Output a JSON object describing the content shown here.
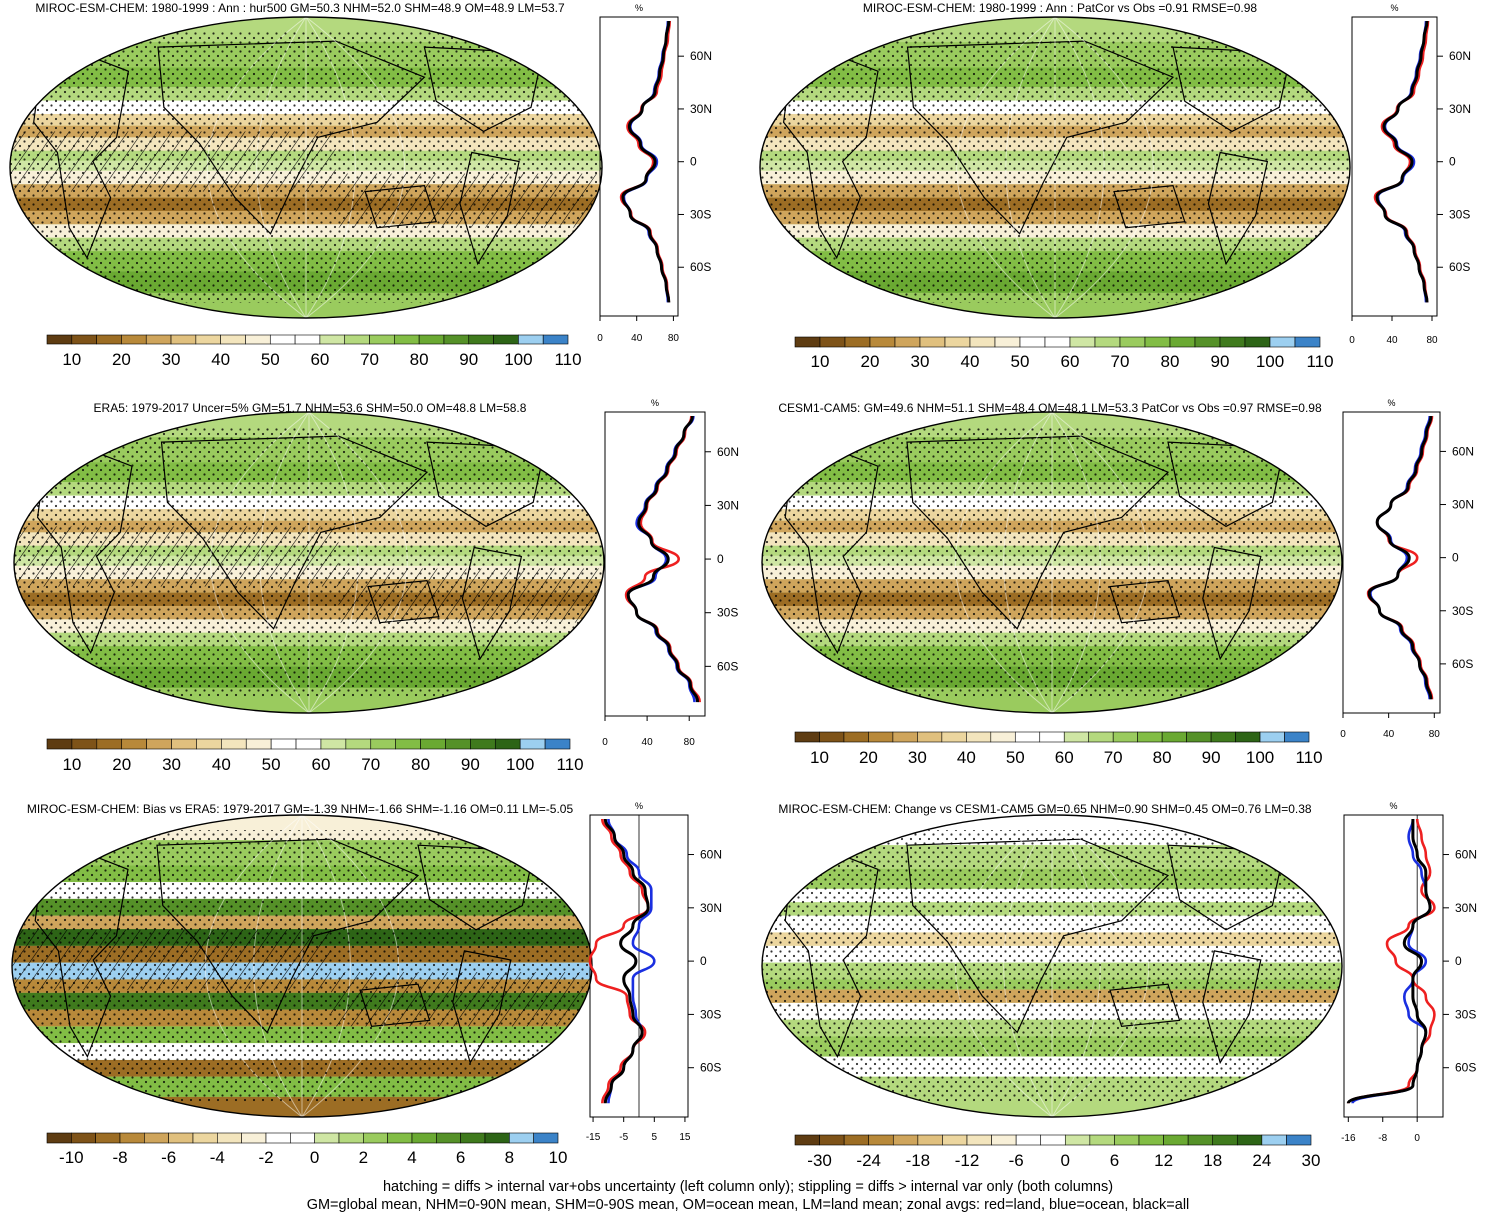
{
  "figure": {
    "footer_lines": [
      "hatching = diffs > internal var+obs uncertainty (left column only); stippling = diffs > internal var only (both columns)",
      "GM=global mean, NHM=0-90N mean, SHM=0-90S mean, OM=ocean mean, LM=land mean; zonal avgs: red=land, blue=ocean, black=all"
    ]
  },
  "colors": {
    "land_line": "#ee2020",
    "ocean_line": "#1a2fe0",
    "all_line": "#000000",
    "abs_palette": [
      "#5e3c12",
      "#7e5318",
      "#9c6d24",
      "#b8893a",
      "#cfa55c",
      "#e0c07e",
      "#ecd69f",
      "#f3e5bd",
      "#f8f0d8",
      "#ffffff",
      "#ffffff",
      "#cfe6a4",
      "#b4d97e",
      "#9acb5e",
      "#82bd45",
      "#6aa932",
      "#559128",
      "#3f7a1d",
      "#2d6416",
      "#9ccff0",
      "#3b83c8"
    ],
    "diff_palette": [
      "#5e3c12",
      "#7e5318",
      "#9c6d24",
      "#b8893a",
      "#cfa55c",
      "#e0c07e",
      "#ecd69f",
      "#f3e5bd",
      "#f8f0d8",
      "#ffffff",
      "#ffffff",
      "#cfe6a4",
      "#b4d97e",
      "#9acb5e",
      "#82bd45",
      "#6aa932",
      "#559128",
      "#3f7a1d",
      "#2d6416",
      "#9ccff0",
      "#3b83c8"
    ]
  },
  "chart_data": [
    {
      "type": "heatmap",
      "title": "MIROC-ESM-CHEM: 1980-1999 : Ann : hur500 GM=50.3 NHM=52.0 SHM=48.9 OM=48.9 LM=53.7",
      "colorbar_ticks": [
        "10",
        "20",
        "30",
        "40",
        "50",
        "60",
        "70",
        "80",
        "90",
        "100",
        "110"
      ],
      "zonal_plot": {
        "unit_label": "%",
        "x_ticks": [
          "0",
          "40",
          "80"
        ],
        "x_range": [
          0,
          85
        ],
        "y_ticks": [
          "60N",
          "30N",
          "0",
          "30S",
          "60S"
        ],
        "lat": [
          80,
          70,
          60,
          50,
          40,
          30,
          20,
          10,
          0,
          -10,
          -20,
          -30,
          -40,
          -50,
          -60,
          -70,
          -80
        ],
        "series": [
          {
            "name": "land",
            "values": [
              76,
              74,
              70,
              67,
              62,
              45,
              30,
              42,
              58,
              50,
              23,
              34,
              55,
              63,
              68,
              73,
              75
            ]
          },
          {
            "name": "ocean",
            "values": [
              74,
              72,
              68,
              64,
              59,
              46,
              33,
              45,
              62,
              51,
              26,
              33,
              53,
              62,
              67,
              72,
              74
            ]
          },
          {
            "name": "all",
            "values": [
              75,
              72,
              69,
              65,
              60,
              46,
              32,
              44,
              60,
              50,
              25,
              33,
              54,
              62,
              67,
              72,
              75
            ]
          }
        ]
      }
    },
    {
      "type": "heatmap",
      "title": "MIROC-ESM-CHEM: 1980-1999 : Ann : PatCor vs Obs =0.91 RMSE=0.98",
      "colorbar_ticks": [
        "10",
        "20",
        "30",
        "40",
        "50",
        "60",
        "70",
        "80",
        "90",
        "100",
        "110"
      ],
      "zonal_plot": {
        "unit_label": "%",
        "x_ticks": [
          "0",
          "40",
          "80"
        ],
        "x_range": [
          0,
          85
        ],
        "y_ticks": [
          "60N",
          "30N",
          "0",
          "30S",
          "60S"
        ],
        "lat": [
          80,
          70,
          60,
          50,
          40,
          30,
          20,
          10,
          0,
          -10,
          -20,
          -30,
          -40,
          -50,
          -60,
          -70,
          -80
        ],
        "series": [
          {
            "name": "land",
            "values": [
              76,
              74,
              71,
              67,
              62,
              45,
              30,
              42,
              58,
              50,
              23,
              34,
              55,
              63,
              68,
              73,
              75
            ]
          },
          {
            "name": "ocean",
            "values": [
              74,
              72,
              68,
              64,
              59,
              46,
              33,
              45,
              62,
              51,
              26,
              33,
              53,
              62,
              67,
              72,
              74
            ]
          },
          {
            "name": "all",
            "values": [
              75,
              72,
              69,
              65,
              60,
              46,
              32,
              44,
              60,
              50,
              25,
              33,
              54,
              62,
              67,
              72,
              75
            ]
          }
        ]
      }
    },
    {
      "type": "heatmap",
      "title": "ERA5: 1979-2017 Uncer=5% GM=51.7 NHM=53.6 SHM=50.0 OM=48.8 LM=58.8",
      "colorbar_ticks": [
        "10",
        "20",
        "30",
        "40",
        "50",
        "60",
        "70",
        "80",
        "90",
        "100",
        "110"
      ],
      "zonal_plot": {
        "unit_label": "%",
        "x_ticks": [
          "0",
          "40",
          "80"
        ],
        "x_range": [
          0,
          95
        ],
        "y_ticks": [
          "60N",
          "30N",
          "0",
          "30S",
          "60S"
        ],
        "lat": [
          80,
          70,
          60,
          50,
          40,
          30,
          20,
          10,
          0,
          -10,
          -20,
          -30,
          -40,
          -50,
          -60,
          -70,
          -80
        ],
        "series": [
          {
            "name": "land",
            "values": [
              82,
              76,
              68,
              60,
              50,
              40,
              34,
              45,
              70,
              38,
              20,
              30,
              50,
              62,
              70,
              82,
              90
            ]
          },
          {
            "name": "ocean",
            "values": [
              84,
              75,
              66,
              58,
              48,
              38,
              30,
              44,
              58,
              48,
              22,
              30,
              48,
              60,
              68,
              80,
              85
            ]
          },
          {
            "name": "all",
            "values": [
              83,
              75,
              67,
              59,
              49,
              39,
              32,
              44,
              60,
              46,
              22,
              30,
              49,
              61,
              69,
              81,
              88
            ]
          }
        ]
      }
    },
    {
      "type": "heatmap",
      "title": "CESM1-CAM5: GM=49.6 NHM=51.1 SHM=48.4 OM=48.1 LM=53.3 PatCor vs Obs =0.97 RMSE=0.98",
      "colorbar_ticks": [
        "10",
        "20",
        "30",
        "40",
        "50",
        "60",
        "70",
        "80",
        "90",
        "100",
        "110"
      ],
      "zonal_plot": {
        "unit_label": "%",
        "x_ticks": [
          "0",
          "40",
          "80"
        ],
        "x_range": [
          0,
          85
        ],
        "y_ticks": [
          "60N",
          "30N",
          "0",
          "30S",
          "60S"
        ],
        "lat": [
          80,
          70,
          60,
          50,
          40,
          30,
          20,
          10,
          0,
          -10,
          -20,
          -30,
          -40,
          -50,
          -60,
          -70,
          -80
        ],
        "series": [
          {
            "name": "land",
            "values": [
              78,
              74,
              70,
              65,
              58,
              42,
              30,
              40,
              65,
              48,
              22,
              32,
              52,
              62,
              68,
              74,
              78
            ]
          },
          {
            "name": "ocean",
            "values": [
              76,
              72,
              68,
              63,
              56,
              42,
              30,
              42,
              56,
              48,
              24,
              32,
              50,
              60,
              67,
              72,
              76
            ]
          },
          {
            "name": "all",
            "values": [
              77,
              73,
              69,
              64,
              57,
              42,
              30,
              41,
              58,
              48,
              23,
              32,
              51,
              61,
              67,
              73,
              77
            ]
          }
        ]
      }
    },
    {
      "type": "heatmap",
      "title": "MIROC-ESM-CHEM: Bias vs ERA5: 1979-2017 GM=-1.39 NHM=-1.66 SHM=-1.16 OM=0.11 LM=-5.05",
      "colorbar_ticks": [
        "-10",
        "-8",
        "-6",
        "-4",
        "-2",
        "0",
        "2",
        "4",
        "6",
        "8",
        "10"
      ],
      "zonal_plot": {
        "unit_label": "%",
        "x_ticks": [
          "-15",
          "-5",
          "5",
          "15"
        ],
        "x_range": [
          -16,
          16
        ],
        "y_ticks": [
          "60N",
          "30N",
          "0",
          "30S",
          "60S"
        ],
        "lat": [
          80,
          70,
          60,
          50,
          40,
          30,
          20,
          10,
          0,
          -10,
          -20,
          -30,
          -40,
          -50,
          -60,
          -70,
          -80
        ],
        "series": [
          {
            "name": "land",
            "values": [
              -12,
              -9,
              -6,
              -3,
              1,
              3,
              -5,
              -14,
              -16,
              -14,
              -4,
              -3,
              2,
              -2,
              -6,
              -10,
              -12
            ]
          },
          {
            "name": "ocean",
            "values": [
              -10,
              -8,
              -4,
              0,
              4,
              4,
              0,
              -2,
              5,
              -2,
              -2,
              -1,
              1,
              -2,
              -5,
              -9,
              -10
            ]
          },
          {
            "name": "all",
            "values": [
              -11,
              -8,
              -5,
              -2,
              2,
              3,
              -2,
              -6,
              -1,
              -5,
              -3,
              -2,
              1,
              -2,
              -5,
              -9,
              -11
            ]
          }
        ]
      }
    },
    {
      "type": "heatmap",
      "title": "MIROC-ESM-CHEM: Change vs CESM1-CAM5 GM=0.65 NHM=0.90 SHM=0.45 OM=0.76 LM=0.38",
      "colorbar_ticks": [
        "-30",
        "-24",
        "-18",
        "-12",
        "-6",
        "0",
        "6",
        "12",
        "18",
        "24",
        "30"
      ],
      "zonal_plot": {
        "unit_label": "%",
        "x_ticks": [
          "-16",
          "-8",
          "0"
        ],
        "x_range": [
          -17,
          6
        ],
        "y_ticks": [
          "60N",
          "30N",
          "0",
          "30S",
          "60S"
        ],
        "lat": [
          80,
          70,
          60,
          50,
          40,
          30,
          20,
          10,
          0,
          -10,
          -20,
          -30,
          -40,
          -50,
          -60,
          -70,
          -80
        ],
        "series": [
          {
            "name": "land",
            "values": [
              0,
              1,
              2,
              3,
              1,
              4,
              -2,
              -7,
              -5,
              -1,
              2,
              4,
              3,
              1,
              0,
              -2,
              -16
            ]
          },
          {
            "name": "ocean",
            "values": [
              -1,
              -2,
              -1,
              1,
              2,
              3,
              -1,
              -2,
              2,
              -1,
              -3,
              -2,
              2,
              1,
              0,
              -1,
              -15
            ]
          },
          {
            "name": "all",
            "values": [
              -1,
              -1,
              0,
              2,
              2,
              3,
              -1,
              -3,
              1,
              -1,
              -1,
              0,
              2,
              1,
              0,
              -1,
              -16
            ]
          }
        ]
      }
    }
  ]
}
